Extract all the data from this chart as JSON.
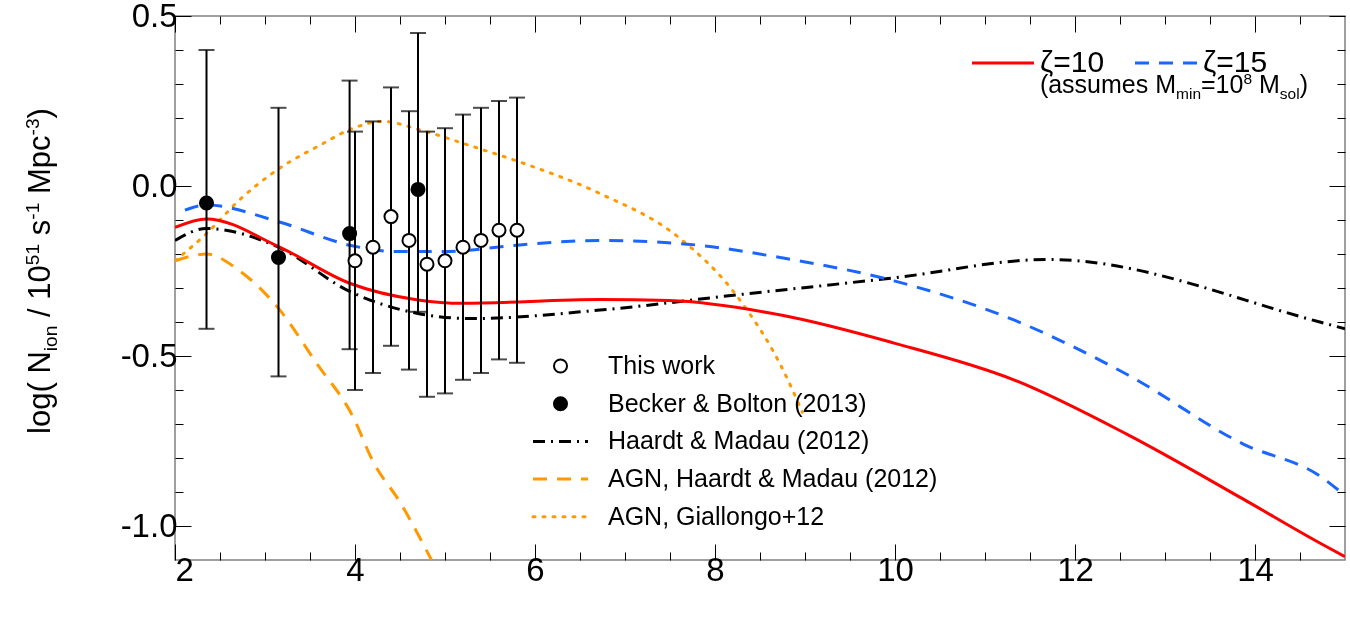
{
  "chart_data": {
    "type": "line",
    "ylabel": "log( N$_{ion}$ / 10$^{51}$ s$^{-1}$ Mpc$^{-3}$)",
    "xlim": [
      2,
      15
    ],
    "ylim": [
      -1.1,
      0.5
    ],
    "xticks": [
      2,
      {
        "value": 2.5,
        "label": null
      },
      {
        "value": 3,
        "label": null
      },
      {
        "value": 3.5,
        "label": null
      },
      4,
      {
        "value": 4.5,
        "label": null
      },
      {
        "value": 5,
        "label": null
      },
      {
        "value": 5.5,
        "label": null
      },
      6,
      {
        "value": 6.5,
        "label": null
      },
      {
        "value": 7,
        "label": null
      },
      {
        "value": 7.5,
        "label": null
      },
      8,
      {
        "value": 8.5,
        "label": null
      },
      {
        "value": 9,
        "label": null
      },
      {
        "value": 9.5,
        "label": null
      },
      10,
      {
        "value": 10.5,
        "label": null
      },
      {
        "value": 11,
        "label": null
      },
      {
        "value": 11.5,
        "label": null
      },
      12,
      {
        "value": 12.5,
        "label": null
      },
      {
        "value": 13,
        "label": null
      },
      {
        "value": 13.5,
        "label": null
      },
      14,
      {
        "value": 14.5,
        "label": null
      }
    ],
    "yticks": [
      {
        "value": -1.0,
        "label": "-1.0"
      },
      {
        "value": -0.9,
        "label": null
      },
      {
        "value": -0.8,
        "label": null
      },
      {
        "value": -0.7,
        "label": null
      },
      {
        "value": -0.6,
        "label": null
      },
      -0.5,
      {
        "value": -0.4,
        "label": null
      },
      {
        "value": -0.3,
        "label": null
      },
      {
        "value": -0.2,
        "label": null
      },
      {
        "value": -0.1,
        "label": null
      },
      {
        "value": 0,
        "label": "0.0"
      },
      {
        "value": 0.1,
        "label": null
      },
      {
        "value": 0.2,
        "label": null
      },
      {
        "value": 0.3,
        "label": null
      },
      {
        "value": 0.4,
        "label": null
      },
      0.5
    ],
    "grid": false,
    "legend": "bottom",
    "annotations": [
      "(assumes M$_{min}$=10$^{8}$ M$_{sol}$)"
    ],
    "series": [
      {
        "name": "This work",
        "type": "scatter",
        "marker": "circle",
        "color": "#ffffff",
        "x": [
          4.0,
          4.2,
          4.4,
          4.6,
          4.8,
          5.0,
          5.2,
          5.4,
          5.6,
          5.8
        ],
        "values": [
          -0.22,
          -0.18,
          -0.09,
          -0.16,
          -0.23,
          -0.22,
          -0.18,
          -0.16,
          -0.13,
          -0.13
        ],
        "errors": [
          [
            -0.6,
            0.16
          ],
          [
            -0.55,
            0.19
          ],
          [
            -0.47,
            0.29
          ],
          [
            -0.54,
            0.22
          ],
          [
            -0.62,
            0.16
          ],
          [
            -0.61,
            0.17
          ],
          [
            -0.57,
            0.21
          ],
          [
            -0.55,
            0.23
          ],
          [
            -0.51,
            0.25
          ],
          [
            -0.52,
            0.26
          ]
        ]
      },
      {
        "name": "Becker & Bolton (2013)",
        "type": "scatter",
        "marker": "circle",
        "color": "#000000",
        "x": [
          2.35,
          3.15,
          3.94,
          4.7
        ],
        "values": [
          -0.05,
          -0.21,
          -0.14,
          -0.01
        ],
        "errors": [
          [
            -0.42,
            0.4
          ],
          [
            -0.56,
            0.23
          ],
          [
            -0.48,
            0.31
          ],
          [
            -0.37,
            0.45
          ]
        ]
      },
      {
        "name": "Haardt & Madau (2012)",
        "line_style": "dashdot",
        "color": "#000000",
        "x": [
          2.0,
          2.35,
          3.15,
          3.94,
          4.7,
          5.29,
          6.72,
          8.25,
          9.99,
          11.7,
          14.72,
          15.0
        ],
        "values": [
          -0.16,
          -0.125,
          -0.18,
          -0.31,
          -0.375,
          -0.39,
          -0.365,
          -0.32,
          -0.27,
          -0.216,
          -0.4,
          -0.42
        ]
      },
      {
        "name": "AGN, Haardt & Madau (2012)",
        "line_style": "dashed",
        "color": "#ff9900",
        "x": [
          2.0,
          2.35,
          2.72,
          3.15,
          3.57,
          3.98,
          4.2,
          4.5,
          4.85
        ],
        "values": [
          -0.22,
          -0.2,
          -0.25,
          -0.36,
          -0.52,
          -0.68,
          -0.81,
          -0.93,
          -1.1
        ]
      },
      {
        "name": "AGN, Giallongo+12",
        "line_style": "dotted",
        "color": "#ff9900",
        "x": [
          2.0,
          2.35,
          2.72,
          3.15,
          3.61,
          3.98,
          4.31,
          4.72,
          5.31,
          5.87,
          6.72,
          7.59,
          8.25,
          8.76,
          8.97
        ],
        "values": [
          -0.22,
          -0.14,
          -0.04,
          0.05,
          0.12,
          0.17,
          0.19,
          0.165,
          0.116,
          0.067,
          -0.022,
          -0.15,
          -0.326,
          -0.543,
          -0.665
        ]
      },
      {
        "name": "ζ=10",
        "line_style": "solid",
        "color": "#ff0000",
        "x": [
          2.0,
          2.35,
          3.15,
          3.94,
          4.7,
          5.19,
          6.72,
          7.49,
          8.76,
          9.99,
          11.32,
          12.59,
          13.87,
          14.72,
          15.0
        ],
        "values": [
          -0.122,
          -0.097,
          -0.178,
          -0.286,
          -0.335,
          -0.345,
          -0.334,
          -0.337,
          -0.381,
          -0.462,
          -0.57,
          -0.732,
          -0.921,
          -1.05,
          -1.09
        ]
      },
      {
        "name": "ζ=15",
        "line_style": "dashed",
        "color": "#1a66ff",
        "x": [
          2.11,
          2.35,
          3.15,
          3.94,
          4.45,
          4.99,
          5.8,
          6.72,
          7.69,
          8.76,
          9.99,
          11.32,
          12.59,
          13.87,
          14.72,
          15.0
        ],
        "values": [
          -0.071,
          -0.056,
          -0.105,
          -0.174,
          -0.193,
          -0.193,
          -0.174,
          -0.16,
          -0.171,
          -0.212,
          -0.279,
          -0.394,
          -0.556,
          -0.759,
          -0.853,
          -0.91
        ]
      }
    ]
  }
}
